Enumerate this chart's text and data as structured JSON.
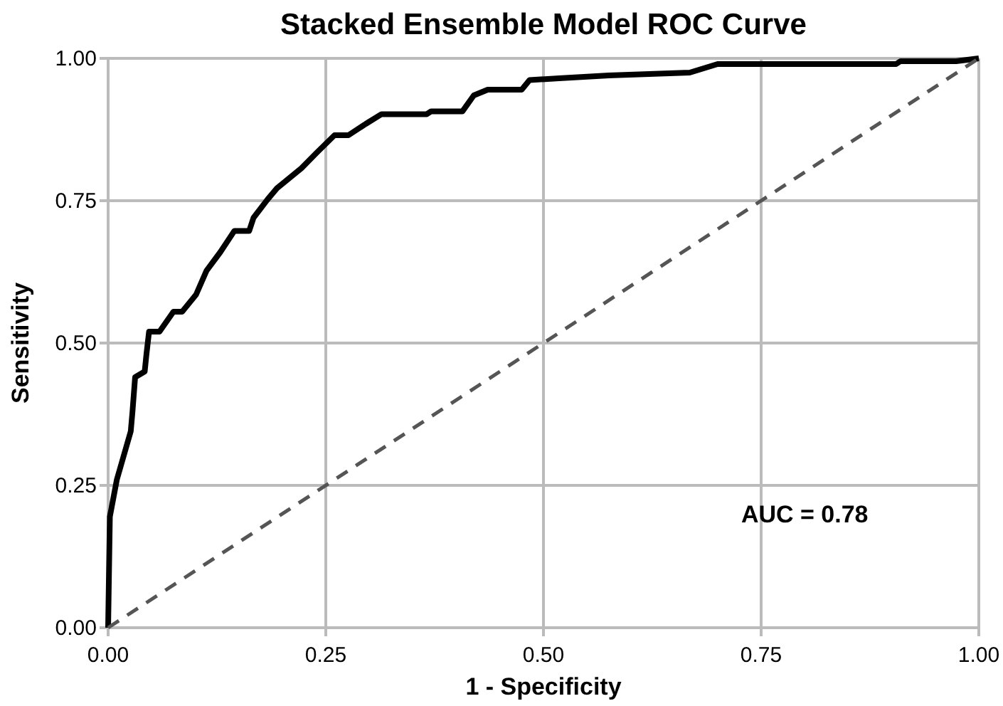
{
  "chart_data": {
    "type": "line",
    "title": "Stacked Ensemble Model ROC Curve",
    "xlabel": "1 - Specificity",
    "ylabel": "Sensitivity",
    "annotations": [
      "AUC = 0.78"
    ],
    "xlim": [
      0,
      1
    ],
    "ylim": [
      0,
      1
    ],
    "xticks": [
      {
        "value": 0,
        "label": "0.00"
      },
      {
        "value": 0.25,
        "label": "0.25"
      },
      {
        "value": 0.5,
        "label": "0.50"
      },
      {
        "value": 0.75,
        "label": "0.75"
      },
      {
        "value": 1,
        "label": "1.00"
      }
    ],
    "yticks": [
      {
        "value": 0,
        "label": "0.00"
      },
      {
        "value": 0.25,
        "label": "0.25"
      },
      {
        "value": 0.5,
        "label": "0.50"
      },
      {
        "value": 0.75,
        "label": "0.75"
      },
      {
        "value": 1,
        "label": "1.00"
      }
    ],
    "grid": true,
    "series": [
      {
        "color": "#000000",
        "line_style": "solid",
        "x": [
          0,
          0.002,
          0.01,
          0.026,
          0.028,
          0.031,
          0.042,
          0.044,
          0.047,
          0.059,
          0.075,
          0.085,
          0.101,
          0.113,
          0.129,
          0.145,
          0.162,
          0.167,
          0.183,
          0.194,
          0.222,
          0.24,
          0.26,
          0.276,
          0.296,
          0.314,
          0.366,
          0.371,
          0.407,
          0.42,
          0.436,
          0.475,
          0.484,
          0.518,
          0.575,
          0.668,
          0.7,
          0.905,
          0.91,
          0.974,
          1
        ],
        "values": [
          0,
          0.195,
          0.26,
          0.345,
          0.38,
          0.44,
          0.45,
          0.48,
          0.52,
          0.52,
          0.555,
          0.555,
          0.585,
          0.627,
          0.66,
          0.697,
          0.697,
          0.72,
          0.752,
          0.772,
          0.807,
          0.835,
          0.865,
          0.865,
          0.885,
          0.902,
          0.902,
          0.907,
          0.907,
          0.935,
          0.945,
          0.945,
          0.962,
          0.965,
          0.97,
          0.975,
          0.99,
          0.99,
          0.995,
          0.995,
          1
        ]
      },
      {
        "color": "#555555",
        "line_style": "dashed",
        "x": [
          0,
          1
        ],
        "values": [
          0,
          1
        ]
      }
    ]
  }
}
